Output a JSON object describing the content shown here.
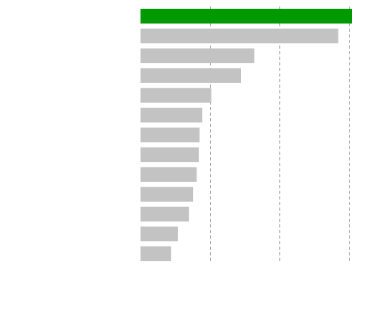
{
  "chart_data": {
    "type": "bar",
    "orientation": "horizontal",
    "title": "",
    "xlabel": "",
    "ylabel": "",
    "categories": [
      "",
      "",
      "",
      "",
      "",
      "",
      "",
      "",
      "",
      "",
      "",
      "",
      ""
    ],
    "values": [
      3.05,
      2.85,
      1.64,
      1.45,
      1.02,
      0.89,
      0.85,
      0.84,
      0.81,
      0.76,
      0.7,
      0.54,
      0.44
    ],
    "xlim": [
      0,
      3.05
    ],
    "grid": {
      "x": true,
      "style": "dashed",
      "ticks": [
        1,
        2,
        3
      ]
    },
    "legend": "none",
    "colors": {
      "highlight": "#009900",
      "bar": "#c3c3c3",
      "grid": "#999999"
    },
    "highlight_index": 0
  }
}
